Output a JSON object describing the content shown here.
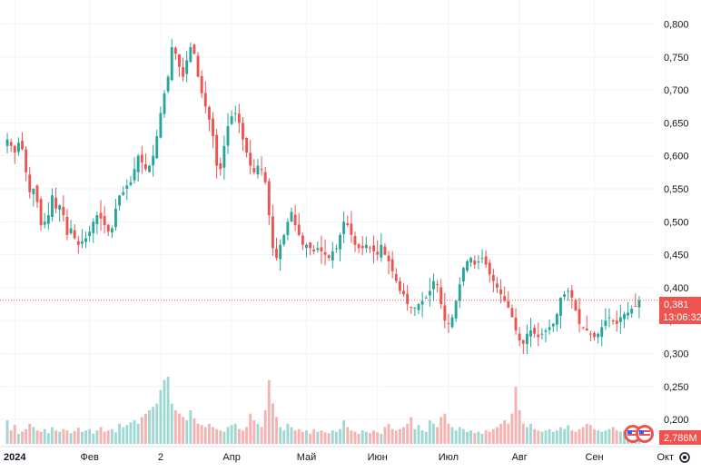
{
  "colors": {
    "up": "#26a69a",
    "down": "#ef5350",
    "volume_up": "#9fd8d2",
    "volume_down": "#f6b2b0",
    "grid": "#f0f3fa",
    "price_line": "#ef5350",
    "axis_text": "#131722",
    "volume_badge": "#ef5350"
  },
  "icons": {
    "settings": "gear-icon",
    "flag": "us-flag-icon"
  },
  "chart_data": {
    "type": "candlestick",
    "title": "",
    "y_axis": {
      "ticks": [
        "0,800",
        "0,750",
        "0,700",
        "0,650",
        "0,600",
        "0,550",
        "0,500",
        "0,450",
        "0,400",
        "0,350",
        "0,300",
        "0,250",
        "0,200"
      ],
      "range": [
        0.185,
        0.82
      ],
      "position": "right"
    },
    "x_axis": {
      "labels": [
        {
          "text": "2024",
          "bold": true,
          "index": 2
        },
        {
          "text": "Фев",
          "bold": false,
          "index": 22
        },
        {
          "text": "2",
          "bold": false,
          "index": 41
        },
        {
          "text": "Апр",
          "bold": false,
          "index": 60
        },
        {
          "text": "Май",
          "bold": false,
          "index": 80
        },
        {
          "text": "Июн",
          "bold": false,
          "index": 99
        },
        {
          "text": "Июл",
          "bold": false,
          "index": 118
        },
        {
          "text": "Авг",
          "bold": false,
          "index": 137
        },
        {
          "text": "Сен",
          "bold": false,
          "index": 157
        },
        {
          "text": "Окт",
          "bold": false,
          "index": 176
        }
      ]
    },
    "grid": true,
    "last_price": {
      "value": "0,381",
      "countdown": "13:06:32",
      "y": 0.381
    },
    "volume_badge": "2,786M",
    "series_close": [
      0.625,
      0.615,
      0.605,
      0.62,
      0.61,
      0.575,
      0.545,
      0.55,
      0.53,
      0.495,
      0.5,
      0.51,
      0.54,
      0.52,
      0.525,
      0.51,
      0.48,
      0.49,
      0.475,
      0.465,
      0.47,
      0.475,
      0.485,
      0.5,
      0.51,
      0.505,
      0.495,
      0.485,
      0.49,
      0.52,
      0.54,
      0.545,
      0.555,
      0.56,
      0.58,
      0.6,
      0.59,
      0.58,
      0.585,
      0.6,
      0.63,
      0.665,
      0.695,
      0.72,
      0.765,
      0.755,
      0.735,
      0.72,
      0.745,
      0.765,
      0.755,
      0.72,
      0.695,
      0.675,
      0.655,
      0.63,
      0.585,
      0.58,
      0.615,
      0.645,
      0.66,
      0.665,
      0.65,
      0.625,
      0.605,
      0.585,
      0.575,
      0.585,
      0.58,
      0.56,
      0.51,
      0.46,
      0.445,
      0.465,
      0.48,
      0.5,
      0.515,
      0.495,
      0.48,
      0.465,
      0.465,
      0.46,
      0.455,
      0.46,
      0.455,
      0.45,
      0.445,
      0.455,
      0.46,
      0.48,
      0.5,
      0.495,
      0.48,
      0.465,
      0.46,
      0.46,
      0.465,
      0.46,
      0.455,
      0.45,
      0.465,
      0.45,
      0.44,
      0.425,
      0.41,
      0.395,
      0.39,
      0.375,
      0.37,
      0.37,
      0.375,
      0.38,
      0.385,
      0.395,
      0.41,
      0.405,
      0.375,
      0.35,
      0.345,
      0.355,
      0.38,
      0.405,
      0.43,
      0.44,
      0.445,
      0.435,
      0.44,
      0.445,
      0.435,
      0.42,
      0.41,
      0.4,
      0.39,
      0.38,
      0.37,
      0.355,
      0.335,
      0.32,
      0.315,
      0.33,
      0.335,
      0.33,
      0.325,
      0.33,
      0.335,
      0.34,
      0.345,
      0.36,
      0.385,
      0.39,
      0.395,
      0.385,
      0.365,
      0.345,
      0.34,
      0.335,
      0.33,
      0.325,
      0.33,
      0.34,
      0.35,
      0.355,
      0.35,
      0.345,
      0.355,
      0.36,
      0.362,
      0.368,
      0.372,
      0.381
    ],
    "volume": [
      0.35,
      0.2,
      0.28,
      0.15,
      0.18,
      0.22,
      0.3,
      0.25,
      0.2,
      0.18,
      0.22,
      0.16,
      0.25,
      0.2,
      0.18,
      0.22,
      0.2,
      0.16,
      0.19,
      0.24,
      0.18,
      0.2,
      0.22,
      0.15,
      0.2,
      0.25,
      0.18,
      0.2,
      0.22,
      0.17,
      0.3,
      0.25,
      0.28,
      0.32,
      0.35,
      0.3,
      0.4,
      0.45,
      0.5,
      0.55,
      0.6,
      0.8,
      0.95,
      1.0,
      0.6,
      0.5,
      0.45,
      0.4,
      0.35,
      0.5,
      0.38,
      0.3,
      0.28,
      0.25,
      0.3,
      0.25,
      0.22,
      0.2,
      0.18,
      0.25,
      0.28,
      0.3,
      0.22,
      0.2,
      0.25,
      0.45,
      0.35,
      0.3,
      0.25,
      0.5,
      0.95,
      0.6,
      0.4,
      0.25,
      0.2,
      0.3,
      0.25,
      0.2,
      0.22,
      0.18,
      0.2,
      0.15,
      0.22,
      0.18,
      0.2,
      0.17,
      0.16,
      0.2,
      0.18,
      0.22,
      0.35,
      0.25,
      0.2,
      0.18,
      0.15,
      0.2,
      0.18,
      0.16,
      0.2,
      0.17,
      0.15,
      0.25,
      0.3,
      0.22,
      0.2,
      0.22,
      0.25,
      0.3,
      0.4,
      0.22,
      0.28,
      0.2,
      0.18,
      0.35,
      0.3,
      0.25,
      0.4,
      0.45,
      0.3,
      0.25,
      0.2,
      0.25,
      0.22,
      0.18,
      0.2,
      0.16,
      0.18,
      0.15,
      0.2,
      0.18,
      0.22,
      0.25,
      0.3,
      0.35,
      0.3,
      0.45,
      0.85,
      0.5,
      0.3,
      0.25,
      0.3,
      0.22,
      0.2,
      0.18,
      0.2,
      0.22,
      0.18,
      0.2,
      0.25,
      0.22,
      0.28,
      0.2,
      0.18,
      0.22,
      0.25,
      0.3,
      0.28,
      0.22,
      0.2,
      0.18,
      0.2,
      0.22,
      0.25,
      0.2,
      0.18,
      0.2,
      0.15,
      0.18,
      0.2,
      0.22,
      0.25,
      0.3,
      0.4
    ]
  }
}
